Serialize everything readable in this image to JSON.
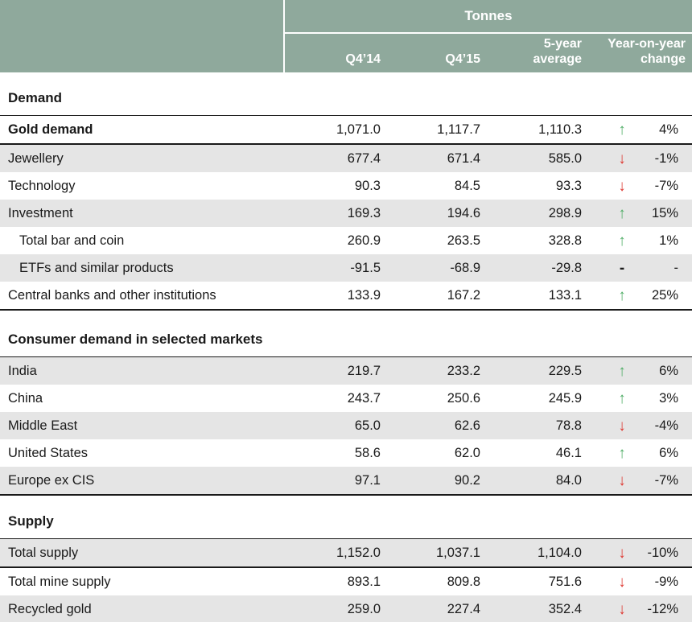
{
  "header": {
    "group_label": "Tonnes",
    "columns": [
      "Q4’14",
      "Q4’15",
      "5-year average",
      "Year-on-year change"
    ]
  },
  "icons": {
    "up_arrow": "↑",
    "down_arrow": "↓",
    "no_change_dash": "-"
  },
  "colors": {
    "header_green": "#8FA99C",
    "row_shade": "#E5E5E5",
    "text": "#1A1A1A",
    "up_green": "#4FAD66",
    "down_red": "#DE3831"
  },
  "chart_data": {
    "type": "table",
    "unit_header": "Tonnes",
    "columns": [
      "Q4'14",
      "Q4'15",
      "5-year average",
      "Year-on-year change"
    ],
    "sections": [
      {
        "name": "demand",
        "title": "Demand",
        "rows": [
          {
            "label": "Gold demand",
            "bold": true,
            "shade": false,
            "thick_bottom": true,
            "values": [
              "1,071.0",
              "1,117.7",
              "1,110.3"
            ],
            "dir": "up",
            "change": "4%"
          },
          {
            "label": "Jewellery",
            "shade": true,
            "values": [
              "677.4",
              "671.4",
              "585.0"
            ],
            "dir": "down",
            "change": "-1%"
          },
          {
            "label": "Technology",
            "shade": false,
            "values": [
              "90.3",
              "84.5",
              "93.3"
            ],
            "dir": "down",
            "change": "-7%"
          },
          {
            "label": "Investment",
            "shade": true,
            "values": [
              "169.3",
              "194.6",
              "298.9"
            ],
            "dir": "up",
            "change": "15%"
          },
          {
            "label": "Total bar and coin",
            "indent": true,
            "shade": false,
            "values": [
              "260.9",
              "263.5",
              "328.8"
            ],
            "dir": "up",
            "change": "1%"
          },
          {
            "label": "ETFs and similar products",
            "indent": true,
            "shade": true,
            "values": [
              "-91.5",
              "-68.9",
              "-29.8"
            ],
            "dir": "none",
            "change": "-"
          },
          {
            "label": "Central banks and other institutions",
            "shade": false,
            "thick_bottom": true,
            "values": [
              "133.9",
              "167.2",
              "133.1"
            ],
            "dir": "up",
            "change": "25%"
          }
        ]
      },
      {
        "name": "consumer-demand",
        "title": "Consumer demand in selected markets",
        "rows": [
          {
            "label": "India",
            "shade": true,
            "values": [
              "219.7",
              "233.2",
              "229.5"
            ],
            "dir": "up",
            "change": "6%"
          },
          {
            "label": "China",
            "shade": false,
            "values": [
              "243.7",
              "250.6",
              "245.9"
            ],
            "dir": "up",
            "change": "3%"
          },
          {
            "label": "Middle East",
            "shade": true,
            "values": [
              "65.0",
              "62.6",
              "78.8"
            ],
            "dir": "down",
            "change": "-4%"
          },
          {
            "label": "United States",
            "shade": false,
            "values": [
              "58.6",
              "62.0",
              "46.1"
            ],
            "dir": "up",
            "change": "6%"
          },
          {
            "label": "Europe ex CIS",
            "shade": true,
            "thick_bottom": true,
            "values": [
              "97.1",
              "90.2",
              "84.0"
            ],
            "dir": "down",
            "change": "-7%"
          }
        ]
      },
      {
        "name": "supply",
        "title": "Supply",
        "rows": [
          {
            "label": "Total supply",
            "shade": true,
            "thick_bottom": true,
            "values": [
              "1,152.0",
              "1,037.1",
              "1,104.0"
            ],
            "dir": "down",
            "change": "-10%"
          },
          {
            "label": "Total mine supply",
            "shade": false,
            "values": [
              "893.1",
              "809.8",
              "751.6"
            ],
            "dir": "down",
            "change": "-9%"
          },
          {
            "label": "Recycled gold",
            "shade": true,
            "thick_bottom": true,
            "values": [
              "259.0",
              "227.4",
              "352.4"
            ],
            "dir": "down",
            "change": "-12%"
          }
        ]
      }
    ]
  }
}
